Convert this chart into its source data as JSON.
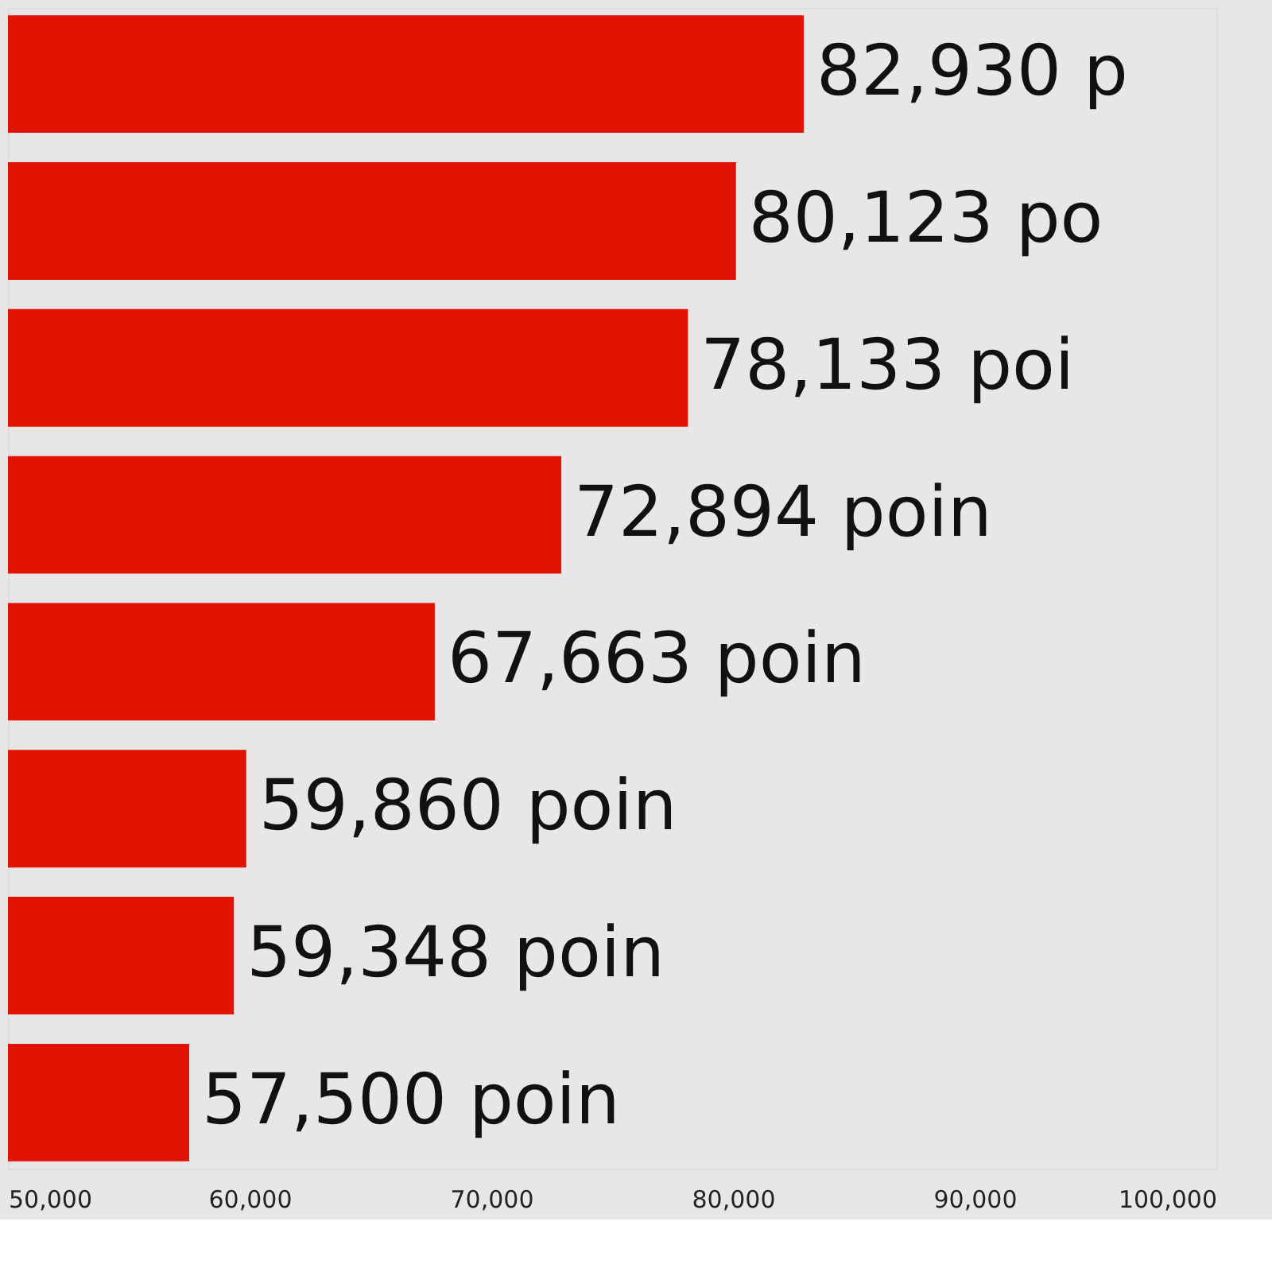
{
  "chart_data": {
    "type": "bar",
    "orientation": "horizontal",
    "categories": [
      null,
      null,
      null,
      null,
      null,
      null,
      null,
      null
    ],
    "values": [
      82930,
      80123,
      78133,
      72894,
      67663,
      59860,
      59348,
      57500
    ],
    "value_labels": [
      "82,930 p",
      "80,123 po",
      "78,133 poi",
      "72,894 poin",
      "67,663 poin",
      "59,860 poin",
      "59,348 poin",
      "57,500 poin"
    ],
    "color": "#e01400",
    "xlim": [
      50000,
      100000
    ],
    "xticks": [
      {
        "value": 50000,
        "label": "50,000"
      },
      {
        "value": 60000,
        "label": "60,000"
      },
      {
        "value": 70000,
        "label": "70,000"
      },
      {
        "value": 80000,
        "label": "80,000"
      },
      {
        "value": 90000,
        "label": "90,000"
      },
      {
        "value": 100000,
        "label": "100,000"
      }
    ],
    "grid": false
  }
}
